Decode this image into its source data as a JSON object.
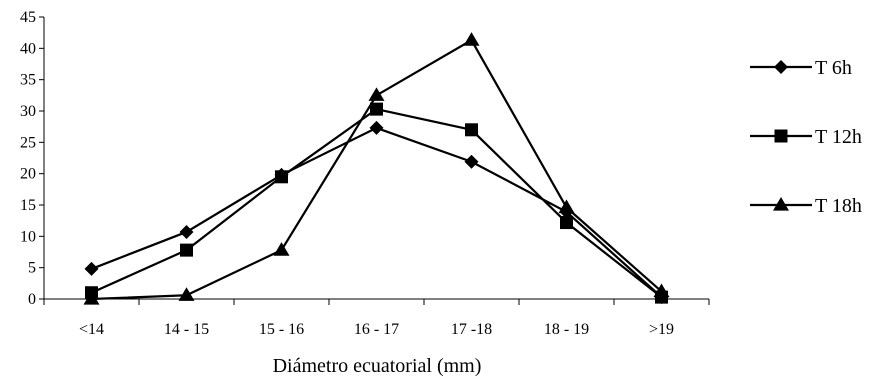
{
  "chart_data": {
    "type": "line",
    "title": "",
    "xlabel": "Diámetro ecuatorial (mm)",
    "ylabel": "",
    "categories": [
      "<14",
      "14 - 15",
      "15 - 16",
      "16 - 17",
      "17 -18",
      "18 - 19",
      ">19"
    ],
    "ylim": [
      0,
      45
    ],
    "yticks": [
      0,
      5,
      10,
      15,
      20,
      25,
      30,
      35,
      40,
      45
    ],
    "grid": false,
    "legend": "right",
    "series": [
      {
        "name": "T 6h",
        "marker": "diamond",
        "values": [
          4.8,
          10.7,
          19.8,
          27.3,
          21.9,
          13.9,
          0.3
        ]
      },
      {
        "name": "T 12h",
        "marker": "square",
        "values": [
          1.0,
          7.8,
          19.5,
          30.3,
          27.0,
          12.2,
          0.3
        ]
      },
      {
        "name": "T 18h",
        "marker": "triangle",
        "values": [
          0.0,
          0.6,
          7.8,
          32.5,
          41.3,
          14.6,
          1.2
        ]
      }
    ],
    "colors": {
      "line": "#000000",
      "marker": "#000000"
    }
  }
}
